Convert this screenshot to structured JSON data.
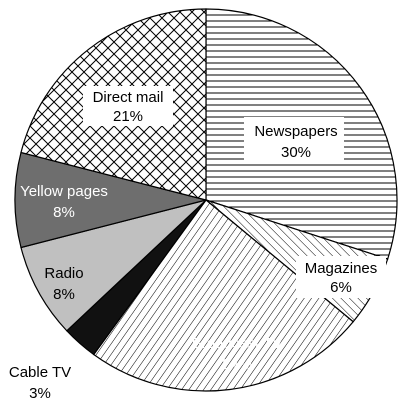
{
  "chart_data": {
    "type": "pie",
    "title": "",
    "slices": [
      {
        "label": "Newspapers",
        "pct": "30%",
        "value": 30,
        "fill": "pat-hlines",
        "text_color": "#000000"
      },
      {
        "label": "Magazines",
        "pct": "6%",
        "value": 6,
        "fill": "pat-diag-fine",
        "text_color": "#000000"
      },
      {
        "label": "Broadcast TV",
        "pct": "24%",
        "value": 24,
        "fill": "pat-diag",
        "text_color": "#ffffff"
      },
      {
        "label": "Cable TV",
        "pct": "3%",
        "value": 3,
        "fill": "#111111",
        "text_color": "#000000"
      },
      {
        "label": "Radio",
        "pct": "8%",
        "value": 8,
        "fill": "#c0c0c0",
        "text_color": "#000000"
      },
      {
        "label": "Yellow pages",
        "pct": "8%",
        "value": 8,
        "fill": "#6e6e6e",
        "text_color": "#ffffff"
      },
      {
        "label": "Direct mail",
        "pct": "21%",
        "value": 21,
        "fill": "pat-cross",
        "text_color": "#000000"
      }
    ]
  }
}
